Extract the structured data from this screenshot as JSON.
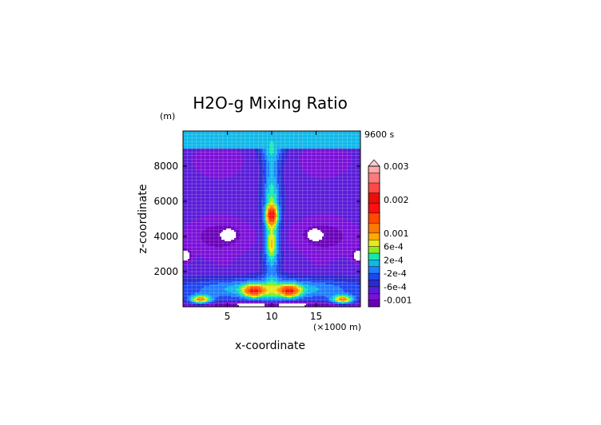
{
  "chart_data": {
    "type": "heatmap",
    "title": "H2O-g Mixing Ratio",
    "time_label": "9600 s",
    "xlabel": "x-coordinate",
    "ylabel": "z-coordinate",
    "y_unit": "(m)",
    "x_unit": "(×1000 m)",
    "xlim": [
      0,
      20
    ],
    "ylim": [
      0,
      10000
    ],
    "x_ticks": [
      5,
      10,
      15
    ],
    "y_ticks": [
      2000,
      4000,
      6000,
      8000
    ],
    "grid": true,
    "colorbar": {
      "position": "right",
      "levels": [
        -0.0012,
        -0.001,
        -0.0008,
        -0.0006,
        -0.0004,
        -0.0002,
        0,
        0.0002,
        0.0004,
        0.0006,
        0.0008,
        0.001,
        0.0013,
        0.0016,
        0.0019,
        0.0022,
        0.0025,
        0.0028,
        0.003
      ],
      "colors": [
        "#6a00b8",
        "#7a10d8",
        "#5a1cd8",
        "#2a2ad0",
        "#1e46f0",
        "#1e7eff",
        "#10b8e8",
        "#18e8b0",
        "#88ee22",
        "#e8e81c",
        "#ffaa00",
        "#ff7800",
        "#ff4800",
        "#ff1010",
        "#e8100a",
        "#ff4848",
        "#ff7a7a",
        "#ffaaaa"
      ],
      "tick_labels": [
        {
          "label": "0.003",
          "value": 0.003
        },
        {
          "label": "0.002",
          "value": 0.002
        },
        {
          "label": "0.001",
          "value": 0.001
        },
        {
          "label": "6e-4",
          "value": 0.0006
        },
        {
          "label": "2e-4",
          "value": 0.0002
        },
        {
          "label": "-2e-4",
          "value": -0.0002
        },
        {
          "label": "-6e-4",
          "value": -0.0006
        },
        {
          "label": "-0.001",
          "value": -0.001
        }
      ]
    },
    "fields": {
      "background": -0.00065,
      "features": [
        {
          "x": 10,
          "z": 9600,
          "sx": 40,
          "sz": 450,
          "amp": 0.0001
        },
        {
          "x": 10,
          "z": 9100,
          "sx": 1.4,
          "sz": 900,
          "amp": 0.00062
        },
        {
          "x": 4,
          "z": 8300,
          "sx": 3.5,
          "sz": 1200,
          "amp": -0.0003
        },
        {
          "x": 16,
          "z": 8300,
          "sx": 3.5,
          "sz": 1200,
          "amp": -0.0003
        },
        {
          "x": 4,
          "z": 4000,
          "sx": 4,
          "sz": 1200,
          "amp": -0.00045
        },
        {
          "x": 16,
          "z": 4000,
          "sx": 4,
          "sz": 1200,
          "amp": -0.00045
        },
        {
          "x": 5.2,
          "z": 4100,
          "sx": 0.7,
          "sz": 280,
          "amp": -0.0008
        },
        {
          "x": 14.8,
          "z": 4100,
          "sx": 0.7,
          "sz": 280,
          "amp": -0.0008
        },
        {
          "x": 0.2,
          "z": 2900,
          "sx": 0.7,
          "sz": 350,
          "amp": -0.0009
        },
        {
          "x": 19.8,
          "z": 2900,
          "sx": 0.7,
          "sz": 350,
          "amp": -0.0009
        },
        {
          "x": 10,
          "z": 5000,
          "sx": 0.9,
          "sz": 3500,
          "amp": 0.0012
        },
        {
          "x": 10,
          "z": 5200,
          "sx": 0.6,
          "sz": 500,
          "amp": 0.0015
        },
        {
          "x": 10,
          "z": 3500,
          "sx": 0.5,
          "sz": 700,
          "amp": 0.0006
        },
        {
          "x": 5,
          "z": 2200,
          "sx": 3.5,
          "sz": 500,
          "amp": -0.0001
        },
        {
          "x": 15,
          "z": 2200,
          "sx": 3.5,
          "sz": 500,
          "amp": -0.0001
        },
        {
          "x": 10,
          "z": 1000,
          "sx": 9.5,
          "sz": 600,
          "amp": 0.0009
        },
        {
          "x": 8,
          "z": 900,
          "sx": 1.2,
          "sz": 350,
          "amp": 0.0016
        },
        {
          "x": 12,
          "z": 900,
          "sx": 1.2,
          "sz": 350,
          "amp": 0.0016
        },
        {
          "x": 2,
          "z": 400,
          "sx": 1.2,
          "sz": 250,
          "amp": 0.0016
        },
        {
          "x": 18,
          "z": 400,
          "sx": 1.2,
          "sz": 250,
          "amp": 0.0016
        },
        {
          "x": 10,
          "z": 100,
          "sx": 10,
          "sz": 150,
          "amp": -0.0008
        }
      ]
    }
  }
}
